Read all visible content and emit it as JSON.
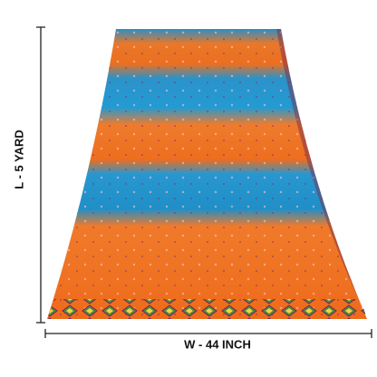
{
  "labels": {
    "length": "L - 5 YARD",
    "width": "W - 44 INCH"
  }
}
